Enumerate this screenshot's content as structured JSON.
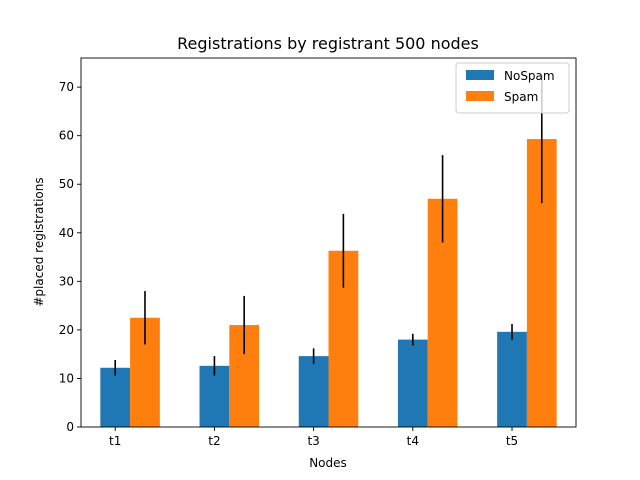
{
  "chart_data": {
    "type": "bar",
    "title": "Registrations by registrant 500 nodes",
    "xlabel": "Nodes",
    "ylabel": "#placed registrations",
    "categories": [
      "t1",
      "t2",
      "t3",
      "t4",
      "t5"
    ],
    "ylim": [
      0,
      76
    ],
    "yticks": [
      0,
      10,
      20,
      30,
      40,
      50,
      60,
      70
    ],
    "legend_position": "top-right",
    "grid": false,
    "series": [
      {
        "name": "NoSpam",
        "color": "#1f77b4",
        "values": [
          12.2,
          12.6,
          14.6,
          18.0,
          19.6
        ],
        "error": [
          1.6,
          2.0,
          1.6,
          1.2,
          1.6
        ]
      },
      {
        "name": "Spam",
        "color": "#ff7f0e",
        "values": [
          22.5,
          21.0,
          36.3,
          47.0,
          59.3
        ],
        "error": [
          5.5,
          6.0,
          7.6,
          9.0,
          13.2
        ]
      }
    ]
  }
}
